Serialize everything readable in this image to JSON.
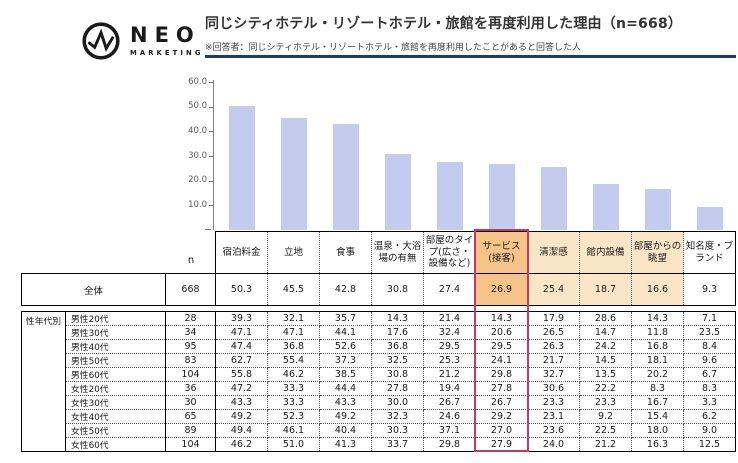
{
  "header": {
    "logo": {
      "text": "NEO",
      "subtext": "MARKETING"
    },
    "title": "同じシティホテル・リゾートホテル・旅館を再度利用した理由（n=668）",
    "subtitle": "※回答者：同じシティホテル・リゾートホテル・旅館を再度利用したことがあると回答した人",
    "rule_color": "#1e3a6e"
  },
  "chart_data": {
    "type": "bar",
    "title": "同じシティホテル・リゾートホテル・旅館を再度利用した理由（n=668）",
    "categories": [
      "宿泊料金",
      "立地",
      "食事",
      "温泉・大浴場の有無",
      "部屋のタイプ(広さ・設備など)",
      "サービス(接客)",
      "清潔感",
      "館内設備",
      "部屋からの眺望",
      "知名度・ブランド"
    ],
    "values": [
      50.3,
      45.5,
      42.8,
      30.8,
      27.4,
      26.9,
      25.4,
      18.7,
      16.6,
      9.3
    ],
    "xlabel": "",
    "ylabel": "",
    "ylim": [
      0,
      60
    ],
    "yticks": [
      10,
      20,
      30,
      40,
      50,
      60
    ],
    "grid": false,
    "legend": false,
    "bar_color": "#c4ccee"
  },
  "table": {
    "n_label": "n",
    "columns": [
      "宿泊料金",
      "立地",
      "食事",
      "温泉・大浴場の有無",
      "部屋のタイプ(広さ・設備など)",
      "サービス(接客)",
      "清潔感",
      "館内設備",
      "部屋からの眺望",
      "知名度・ブランド"
    ],
    "highlight": {
      "strong_col": 5,
      "light_cols": [
        6,
        7,
        8
      ],
      "strong_bg": "#f6c488",
      "light_bg": "#fbe5c7",
      "border_color": "#c23b60"
    },
    "overall": {
      "label": "全体",
      "n": "668",
      "values": [
        "50.3",
        "45.5",
        "42.8",
        "30.8",
        "27.4",
        "26.9",
        "25.4",
        "18.7",
        "16.6",
        "9.3"
      ]
    },
    "group_label": "性年代別",
    "rows": [
      {
        "label": "男性20代",
        "n": "28",
        "values": [
          "39.3",
          "32.1",
          "35.7",
          "14.3",
          "21.4",
          "14.3",
          "17.9",
          "28.6",
          "14.3",
          "7.1"
        ]
      },
      {
        "label": "男性30代",
        "n": "34",
        "values": [
          "47.1",
          "47.1",
          "44.1",
          "17.6",
          "32.4",
          "20.6",
          "26.5",
          "14.7",
          "11.8",
          "23.5"
        ]
      },
      {
        "label": "男性40代",
        "n": "95",
        "values": [
          "47.4",
          "36.8",
          "52.6",
          "36.8",
          "29.5",
          "29.5",
          "26.3",
          "24.2",
          "16.8",
          "8.4"
        ]
      },
      {
        "label": "男性50代",
        "n": "83",
        "values": [
          "62.7",
          "55.4",
          "37.3",
          "32.5",
          "25.3",
          "24.1",
          "21.7",
          "14.5",
          "18.1",
          "9.6"
        ]
      },
      {
        "label": "男性60代",
        "n": "104",
        "values": [
          "55.8",
          "46.2",
          "38.5",
          "30.8",
          "21.2",
          "29.8",
          "32.7",
          "13.5",
          "20.2",
          "6.7"
        ]
      },
      {
        "label": "女性20代",
        "n": "36",
        "values": [
          "47.2",
          "33.3",
          "44.4",
          "27.8",
          "19.4",
          "27.8",
          "30.6",
          "22.2",
          "8.3",
          "8.3"
        ]
      },
      {
        "label": "女性30代",
        "n": "30",
        "values": [
          "43.3",
          "33.3",
          "43.3",
          "30.0",
          "26.7",
          "26.7",
          "23.3",
          "23.3",
          "16.7",
          "3.3"
        ]
      },
      {
        "label": "女性40代",
        "n": "65",
        "values": [
          "49.2",
          "52.3",
          "49.2",
          "32.3",
          "24.6",
          "29.2",
          "23.1",
          "9.2",
          "15.4",
          "6.2"
        ]
      },
      {
        "label": "女性50代",
        "n": "89",
        "values": [
          "49.4",
          "46.1",
          "40.4",
          "30.3",
          "37.1",
          "27.0",
          "23.6",
          "22.5",
          "18.0",
          "9.0"
        ]
      },
      {
        "label": "女性60代",
        "n": "104",
        "values": [
          "46.2",
          "51.0",
          "41.3",
          "33.7",
          "29.8",
          "27.9",
          "24.0",
          "21.2",
          "16.3",
          "12.5"
        ]
      }
    ]
  }
}
